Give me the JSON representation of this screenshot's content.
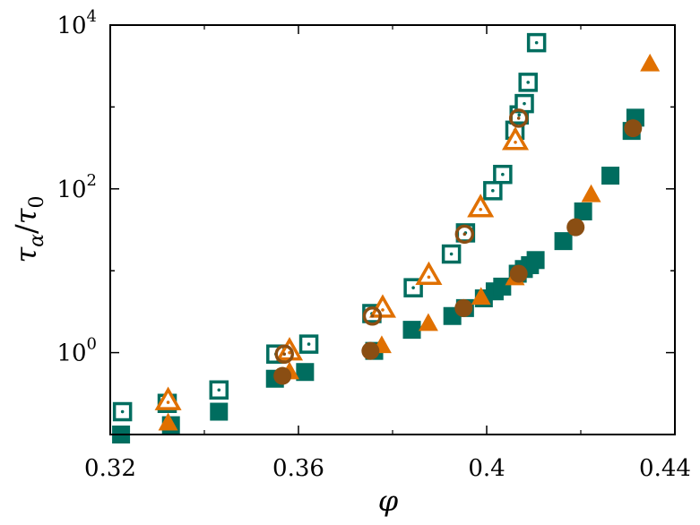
{
  "chart_data": {
    "type": "scatter",
    "x_scale": "linear",
    "y_scale": "log",
    "xlim": [
      0.32,
      0.44
    ],
    "ylim": [
      0.1,
      10000
    ],
    "x_ticks": [
      {
        "value": 0.32,
        "label": "0.32"
      },
      {
        "value": 0.36,
        "label": "0.36"
      },
      {
        "value": 0.4,
        "label": "0.4"
      },
      {
        "value": 0.44,
        "label": "0.44"
      }
    ],
    "y_ticks": [
      {
        "value": 1,
        "base": "10",
        "exp": "0"
      },
      {
        "value": 100,
        "base": "10",
        "exp": "2"
      },
      {
        "value": 10000,
        "base": "10",
        "exp": "4"
      }
    ],
    "xlabel": "φ",
    "ylabel": {
      "tau": "τ",
      "alpha": "α",
      "slash": "/",
      "zero": "0"
    },
    "colors": {
      "teal": "#006d5f",
      "orange": "#e07000",
      "brown": "#8a4e13"
    },
    "series": [
      {
        "marker": "square-open-dot",
        "color": "#006d5f",
        "points": [
          [
            0.3226,
            0.19
          ],
          [
            0.3321,
            0.24
          ],
          [
            0.3431,
            0.35
          ],
          [
            0.3552,
            0.96
          ],
          [
            0.3622,
            1.27
          ],
          [
            0.3756,
            3.0
          ],
          [
            0.3844,
            6.2
          ],
          [
            0.3925,
            16
          ],
          [
            0.3955,
            29
          ],
          [
            0.4013,
            95
          ],
          [
            0.4034,
            150
          ],
          [
            0.406,
            520
          ],
          [
            0.4069,
            800
          ],
          [
            0.408,
            1100
          ],
          [
            0.4088,
            2000
          ],
          [
            0.4106,
            6100
          ]
        ]
      },
      {
        "marker": "square-filled",
        "color": "#006d5f",
        "points": [
          [
            0.3223,
            0.1
          ],
          [
            0.3329,
            0.13
          ],
          [
            0.3431,
            0.19
          ],
          [
            0.355,
            0.48
          ],
          [
            0.3614,
            0.58
          ],
          [
            0.3761,
            1.05
          ],
          [
            0.3841,
            1.9
          ],
          [
            0.3927,
            2.8
          ],
          [
            0.3954,
            3.5
          ],
          [
            0.3994,
            4.6
          ],
          [
            0.4017,
            5.6
          ],
          [
            0.4033,
            6.4
          ],
          [
            0.4066,
            9.2
          ],
          [
            0.4079,
            10.5
          ],
          [
            0.4092,
            11.7
          ],
          [
            0.4104,
            13.5
          ],
          [
            0.4163,
            23
          ],
          [
            0.4205,
            53
          ],
          [
            0.4263,
            145
          ],
          [
            0.4308,
            510
          ],
          [
            0.4316,
            740
          ]
        ]
      },
      {
        "marker": "triangle-open-dot",
        "color": "#e07000",
        "points": [
          [
            0.3323,
            0.26
          ],
          [
            0.3581,
            1.05
          ],
          [
            0.3779,
            3.5
          ],
          [
            0.3877,
            8.8
          ],
          [
            0.3987,
            59
          ],
          [
            0.4061,
            390
          ]
        ]
      },
      {
        "marker": "triangle-filled",
        "color": "#e07000",
        "points": [
          [
            0.3323,
            0.14
          ],
          [
            0.3581,
            0.59
          ],
          [
            0.3777,
            1.23
          ],
          [
            0.3876,
            2.3
          ],
          [
            0.3988,
            4.8
          ],
          [
            0.406,
            8.3
          ],
          [
            0.4222,
            86
          ],
          [
            0.4347,
            3400
          ]
        ]
      },
      {
        "marker": "circle-open-dot",
        "color": "#8a4e13",
        "points": [
          [
            0.357,
            0.96
          ],
          [
            0.3757,
            2.8
          ],
          [
            0.3953,
            28
          ],
          [
            0.4068,
            730
          ]
        ]
      },
      {
        "marker": "circle-filled",
        "color": "#8a4e13",
        "points": [
          [
            0.3566,
            0.52
          ],
          [
            0.3753,
            1.05
          ],
          [
            0.3951,
            3.5
          ],
          [
            0.4068,
            9.2
          ],
          [
            0.4189,
            34
          ],
          [
            0.4311,
            550
          ]
        ]
      }
    ]
  }
}
